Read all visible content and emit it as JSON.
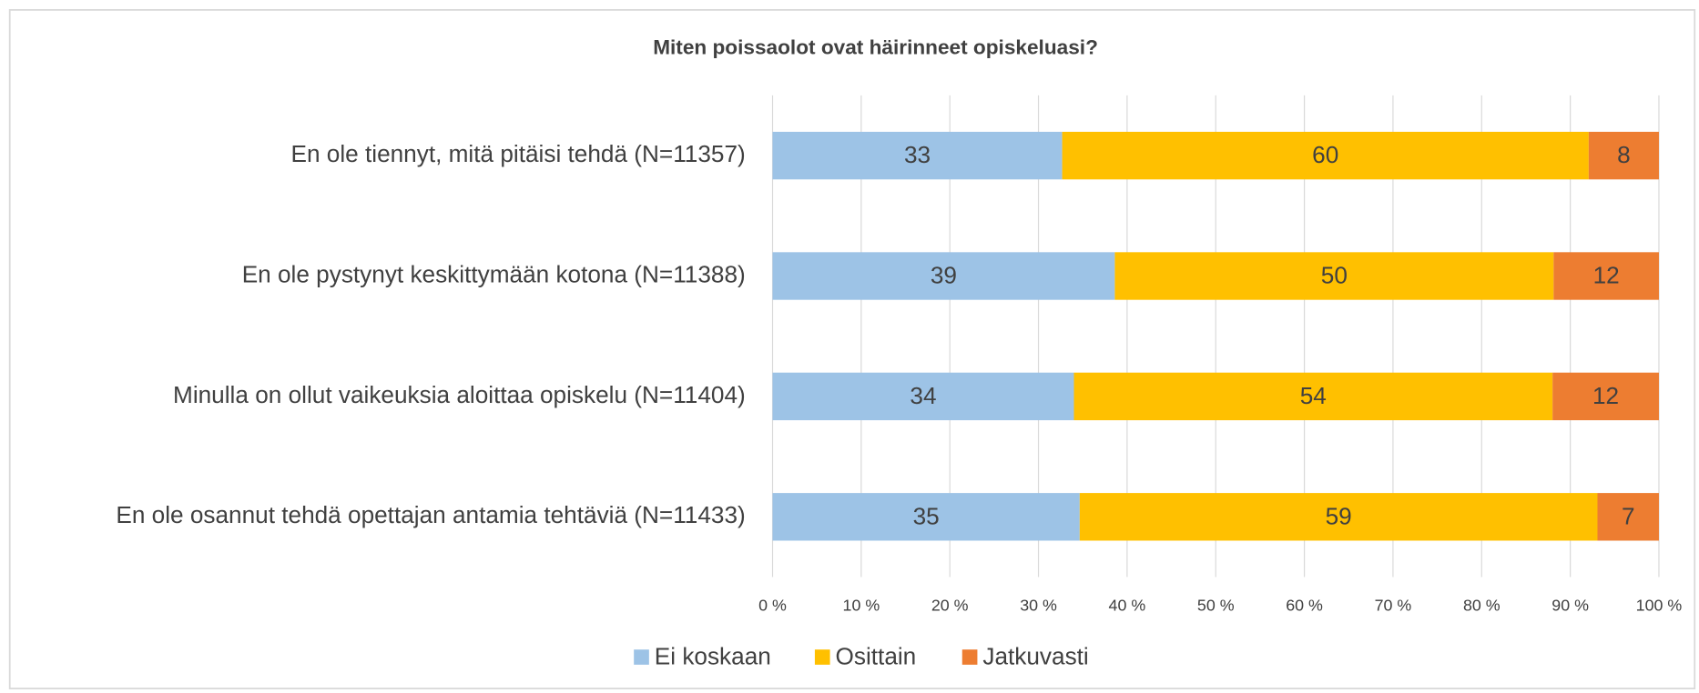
{
  "chart_data": {
    "type": "bar",
    "orientation": "horizontal",
    "stacked": "percent",
    "title": "Miten poissaolot ovat häirinneet opiskeluasi?",
    "categories": [
      "En ole tiennyt, mitä pitäisi tehdä (N=11357)",
      "En ole pystynyt keskittymään kotona (N=11388)",
      "Minulla on ollut vaikeuksia aloittaa opiskelu (N=11404)",
      "En ole osannut tehdä opettajan antamia tehtäviä (N=11433)"
    ],
    "series": [
      {
        "name": "Ei koskaan",
        "color": "#9dc3e6",
        "values": [
          33,
          39,
          34,
          35
        ]
      },
      {
        "name": "Osittain",
        "color": "#ffc000",
        "values": [
          60,
          50,
          54,
          59
        ]
      },
      {
        "name": "Jatkuvasti",
        "color": "#ed7d31",
        "values": [
          8,
          12,
          12,
          7
        ]
      }
    ],
    "xlim": [
      0,
      100
    ],
    "xticks": [
      {
        "value": 0,
        "label": "0 %"
      },
      {
        "value": 10,
        "label": "10 %"
      },
      {
        "value": 20,
        "label": "20 %"
      },
      {
        "value": 30,
        "label": "30 %"
      },
      {
        "value": 40,
        "label": "40 %"
      },
      {
        "value": 50,
        "label": "50 %"
      },
      {
        "value": 60,
        "label": "60 %"
      },
      {
        "value": 70,
        "label": "70 %"
      },
      {
        "value": 80,
        "label": "80 %"
      },
      {
        "value": 90,
        "label": "90 %"
      },
      {
        "value": 100,
        "label": "100 %"
      }
    ],
    "grid": true,
    "legend": "bottom"
  }
}
